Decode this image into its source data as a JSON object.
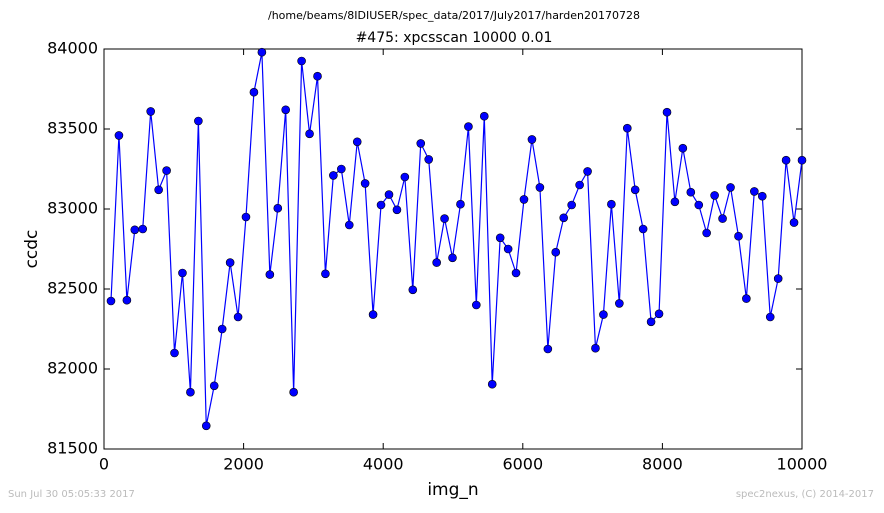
{
  "chart_data": {
    "type": "line",
    "suptitle": "/home/beams/8IDIUSER/spec_data/2017/July2017/harden20170728",
    "title": "#475: xpcsscan 10000 0.01",
    "xlabel": "img_n",
    "ylabel": "ccdc",
    "x": [
      100,
      214,
      328,
      441,
      555,
      669,
      783,
      897,
      1010,
      1124,
      1238,
      1352,
      1465,
      1579,
      1693,
      1807,
      1921,
      2034,
      2148,
      2262,
      2376,
      2490,
      2603,
      2717,
      2831,
      2945,
      3059,
      3172,
      3286,
      3400,
      3514,
      3628,
      3741,
      3855,
      3969,
      4083,
      4197,
      4310,
      4424,
      4538,
      4652,
      4766,
      4879,
      4993,
      5107,
      5221,
      5334,
      5448,
      5562,
      5676,
      5790,
      5903,
      6017,
      6131,
      6245,
      6359,
      6472,
      6586,
      6700,
      6814,
      6928,
      7041,
      7155,
      7269,
      7383,
      7497,
      7610,
      7724,
      7838,
      7952,
      8066,
      8179,
      8293,
      8407,
      8521,
      8634,
      8748,
      8862,
      8976,
      9090,
      9203,
      9317,
      9431,
      9545,
      9659,
      9772,
      9886,
      10000
    ],
    "series": [
      {
        "name": "ccdc",
        "color": "#0000ff",
        "values": [
          82425,
          83460,
          82430,
          82870,
          82875,
          83610,
          83120,
          83240,
          82100,
          82600,
          81855,
          83550,
          81645,
          81895,
          82250,
          82665,
          82325,
          82950,
          83730,
          83980,
          82590,
          83005,
          83620,
          81855,
          83925,
          83470,
          83830,
          82595,
          83210,
          83250,
          82900,
          83420,
          83160,
          82340,
          83025,
          83090,
          82995,
          83200,
          82495,
          83410,
          83310,
          82665,
          82940,
          82695,
          83030,
          83515,
          82400,
          83580,
          81905,
          82820,
          82750,
          82600,
          83060,
          83435,
          83135,
          82125,
          82730,
          82945,
          83025,
          83150,
          83235,
          82130,
          82340,
          83030,
          82410,
          83505,
          83120,
          82875,
          82295,
          82345,
          83605,
          83045,
          83380,
          83105,
          83025,
          82850,
          83085,
          82940,
          83135,
          82830,
          82440,
          83110,
          83080,
          82325,
          82565,
          83305,
          82915,
          83305
        ]
      }
    ],
    "xlim": [
      0,
      10000
    ],
    "xticks": [
      0,
      2000,
      4000,
      6000,
      8000,
      10000
    ],
    "ylim": [
      81500,
      84000
    ],
    "yticks": [
      81500,
      82000,
      82500,
      83000,
      83500,
      84000
    ],
    "grid": false
  },
  "footer": {
    "left": "Sun Jul 30 05:05:33 2017",
    "right": "spec2nexus, (C) 2014-2017"
  }
}
